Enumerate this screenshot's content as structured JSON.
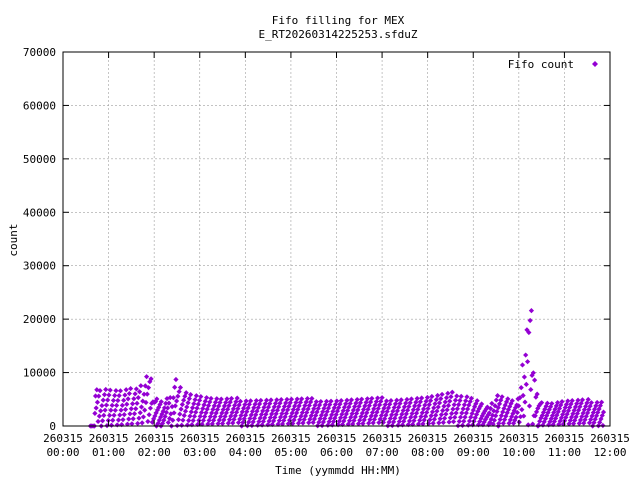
{
  "chart_data": {
    "type": "scatter",
    "title": "Fifo filling for MEX",
    "subtitle": "E_RT20260314225253.sfduZ",
    "xlabel": "Time (yymmdd HH:MM)",
    "ylabel": "count",
    "xlim_hours": [
      0,
      12
    ],
    "ylim": [
      0,
      70000
    ],
    "grid": true,
    "legend_position": "top-right",
    "x_ticks": [
      {
        "date": "260315",
        "time": "00:00"
      },
      {
        "date": "260315",
        "time": "01:00"
      },
      {
        "date": "260315",
        "time": "02:00"
      },
      {
        "date": "260315",
        "time": "03:00"
      },
      {
        "date": "260315",
        "time": "04:00"
      },
      {
        "date": "260315",
        "time": "05:00"
      },
      {
        "date": "260315",
        "time": "06:00"
      },
      {
        "date": "260315",
        "time": "07:00"
      },
      {
        "date": "260315",
        "time": "08:00"
      },
      {
        "date": "260315",
        "time": "09:00"
      },
      {
        "date": "260315",
        "time": "10:00"
      },
      {
        "date": "260315",
        "time": "11:00"
      },
      {
        "date": "260315",
        "time": "12:00"
      }
    ],
    "y_ticks": [
      "0",
      "10000",
      "20000",
      "30000",
      "40000",
      "50000",
      "60000",
      "70000"
    ],
    "series": [
      {
        "name": "Fifo count",
        "color": "#9400d3",
        "marker": "diamond",
        "envelope_hours": [
          0.7,
          0.78,
          0.9,
          1.0,
          1.1,
          1.2,
          1.3,
          1.45,
          1.6,
          1.75,
          1.85,
          1.92,
          2.0,
          2.1,
          2.2,
          2.35,
          2.45,
          2.5,
          2.6,
          2.7,
          2.85,
          3.0,
          3.2,
          3.5,
          4.0,
          5.0,
          6.0,
          7.0,
          7.5,
          8.0,
          8.3,
          8.6,
          8.9,
          9.1,
          9.25,
          9.35,
          9.5,
          9.6,
          9.8,
          9.95,
          10.05,
          10.12,
          10.18,
          10.22,
          10.28,
          10.32,
          10.36,
          10.42,
          10.5,
          10.7,
          11.0,
          11.5,
          11.8
        ],
        "envelope_values": [
          6500,
          7500,
          7800,
          7600,
          7400,
          7300,
          7200,
          7600,
          7400,
          8200,
          10300,
          9800,
          5500,
          4800,
          4500,
          6000,
          10200,
          9000,
          7800,
          6800,
          6300,
          6000,
          5500,
          5200,
          5300,
          5200,
          5100,
          5300,
          5400,
          5600,
          6000,
          6400,
          6000,
          5000,
          4000,
          3500,
          6000,
          5800,
          5000,
          4500,
          8000,
          16000,
          22000,
          27500,
          24000,
          16000,
          7000,
          6200,
          4800,
          4500,
          4900,
          5000,
          5000
        ],
        "start_hours": 0.62,
        "end_hours": 11.85,
        "dip_hours": [
          2.05,
          2.15,
          9.55,
          10.42
        ],
        "dip_values": [
          0,
          0,
          0,
          0
        ]
      }
    ]
  }
}
